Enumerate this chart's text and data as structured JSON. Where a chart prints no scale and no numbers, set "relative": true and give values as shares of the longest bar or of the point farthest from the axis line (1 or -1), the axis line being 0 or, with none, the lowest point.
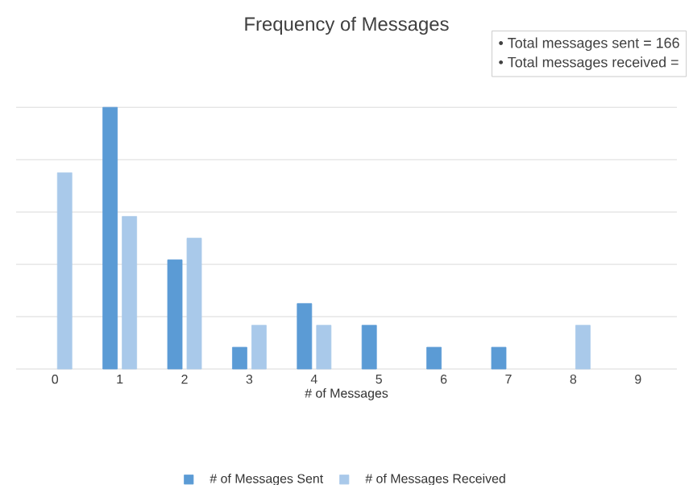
{
  "chart_data": {
    "type": "bar",
    "title": "Frequency of Messages",
    "xlabel": "# of Messages",
    "categories": [
      "0",
      "1",
      "2",
      "3",
      "4",
      "5",
      "6",
      "7",
      "8",
      "9"
    ],
    "series": [
      {
        "name": "# of Messages Sent",
        "color": "#5b9bd5",
        "values": [
          0,
          1,
          0.417,
          0.083,
          0.25,
          0.167,
          0.083,
          0.083,
          0,
          0
        ]
      },
      {
        "name": "# of Messages Received",
        "color": "#a9c9ea",
        "values": [
          0.75,
          0.583,
          0.5,
          0.167,
          0.167,
          0,
          0,
          0,
          0.167,
          0
        ]
      }
    ],
    "relative": true,
    "grid": "y",
    "legend": "bottom",
    "annotations": [
      "• Total messages sent = 166",
      "• Total messages received ="
    ]
  }
}
